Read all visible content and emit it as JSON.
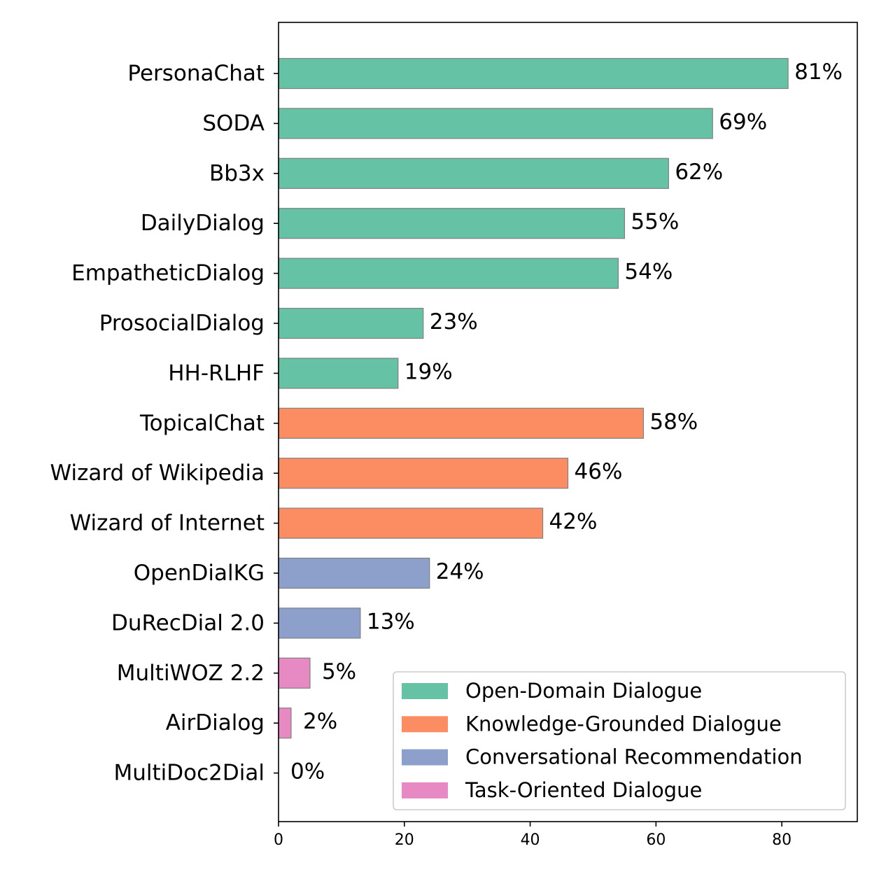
{
  "chart_data": {
    "type": "bar",
    "orientation": "horizontal",
    "title": "",
    "xlabel": "",
    "ylabel": "",
    "xlim": [
      0,
      92
    ],
    "xticks": [
      0,
      20,
      40,
      60,
      80
    ],
    "grid": false,
    "legend_position": "lower-right",
    "groups": [
      {
        "name": "Open-Domain Dialogue",
        "color": "#66c2a5"
      },
      {
        "name": "Knowledge-Grounded Dialogue",
        "color": "#fc8d62"
      },
      {
        "name": "Conversational Recommendation",
        "color": "#8da0cb"
      },
      {
        "name": "Task-Oriented Dialogue",
        "color": "#e78ac3"
      }
    ],
    "bars": [
      {
        "category": "PersonaChat",
        "value": 81,
        "label": "81%",
        "group": 0
      },
      {
        "category": "SODA",
        "value": 69,
        "label": "69%",
        "group": 0
      },
      {
        "category": "Bb3x",
        "value": 62,
        "label": "62%",
        "group": 0
      },
      {
        "category": "DailyDialog",
        "value": 55,
        "label": "55%",
        "group": 0
      },
      {
        "category": "EmpatheticDialog",
        "value": 54,
        "label": "54%",
        "group": 0
      },
      {
        "category": "ProsocialDialog",
        "value": 23,
        "label": "23%",
        "group": 0
      },
      {
        "category": "HH-RLHF",
        "value": 19,
        "label": "19%",
        "group": 0
      },
      {
        "category": "TopicalChat",
        "value": 58,
        "label": "58%",
        "group": 1
      },
      {
        "category": "Wizard of Wikipedia",
        "value": 46,
        "label": "46%",
        "group": 1
      },
      {
        "category": "Wizard of Internet",
        "value": 42,
        "label": "42%",
        "group": 1
      },
      {
        "category": "OpenDialKG",
        "value": 24,
        "label": "24%",
        "group": 2
      },
      {
        "category": "DuRecDial 2.0",
        "value": 13,
        "label": "13%",
        "group": 2
      },
      {
        "category": "MultiWOZ 2.2",
        "value": 5,
        "label": "5%",
        "group": 3
      },
      {
        "category": "AirDialog",
        "value": 2,
        "label": "2%",
        "group": 3
      },
      {
        "category": "MultiDoc2Dial",
        "value": 0,
        "label": "0%",
        "group": 3
      }
    ]
  }
}
